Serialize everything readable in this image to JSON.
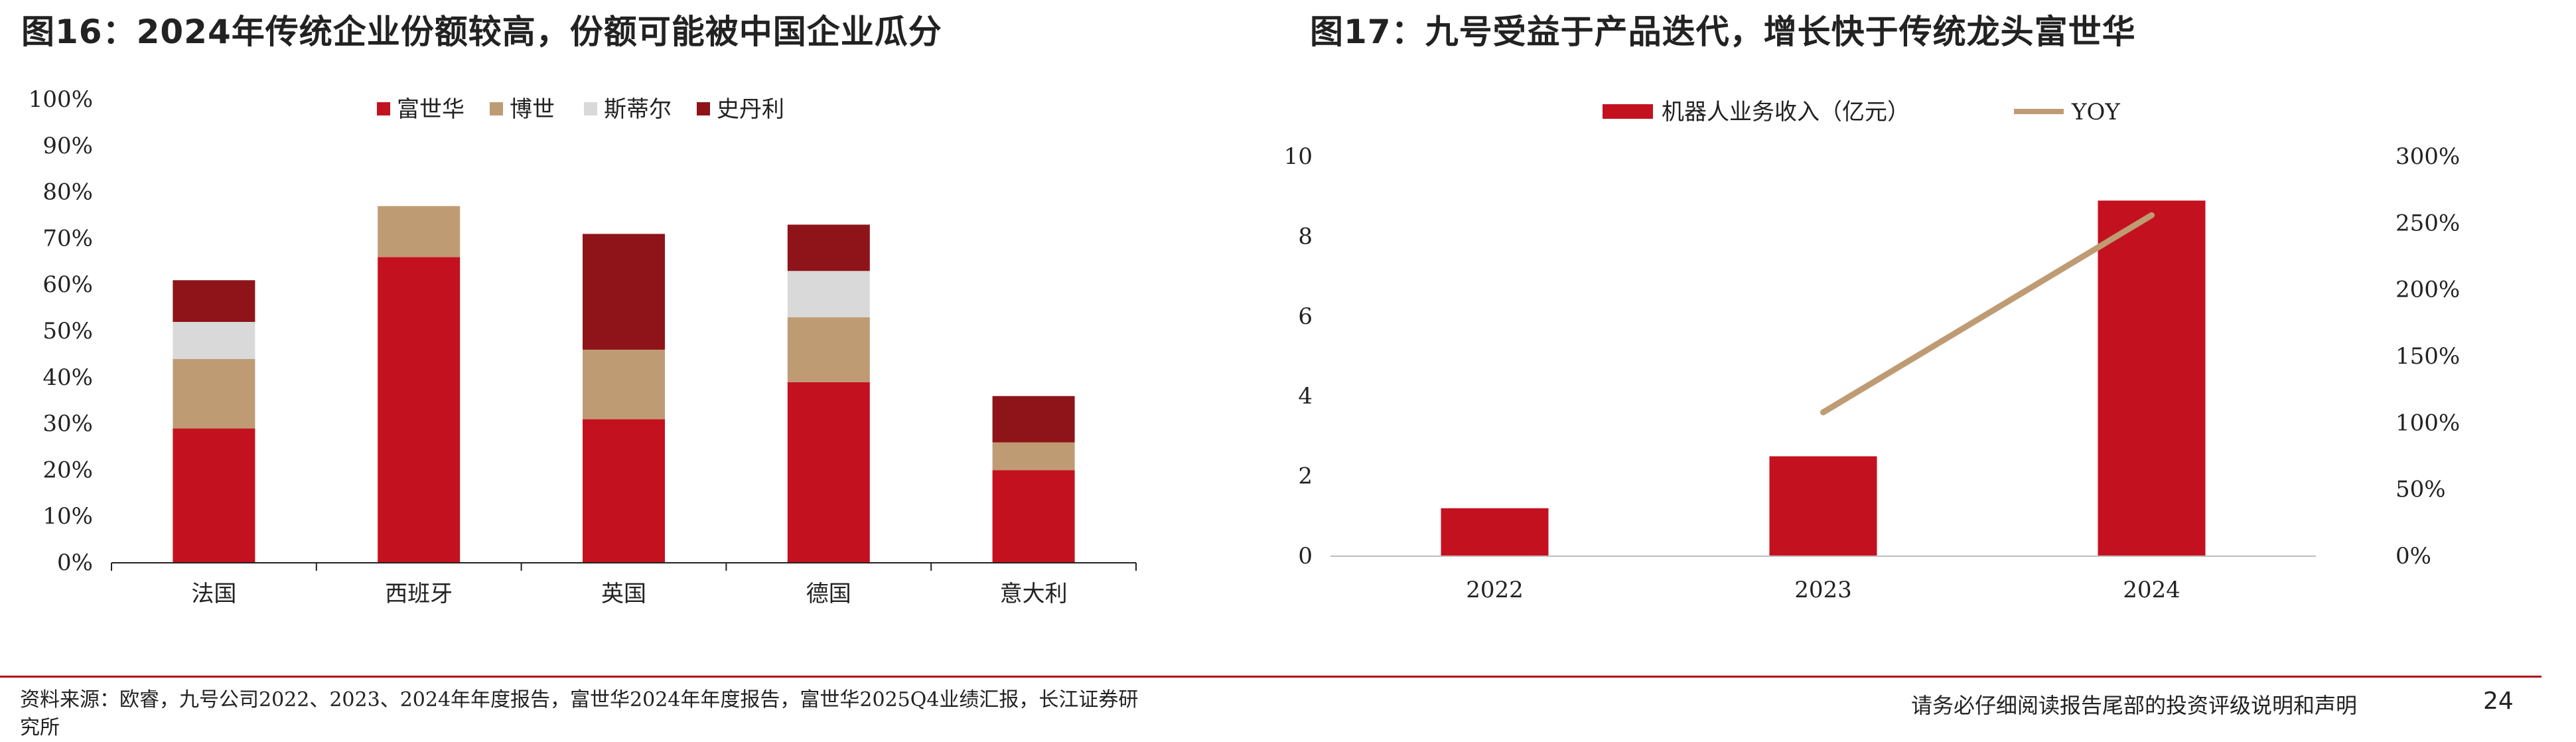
{
  "header": {
    "left_title": "图16：2024年传统企业份额较高，份额可能被中国企业瓜分",
    "right_title": "图17：九号受益于产品迭代，增长快于传统龙头富世华"
  },
  "chart_data": [
    {
      "type": "bar",
      "stacked": true,
      "categories": [
        "法国",
        "西班牙",
        "英国",
        "德国",
        "意大利"
      ],
      "series": [
        {
          "name": "富世华",
          "color": "#c4111f",
          "values": [
            29,
            66,
            31,
            39,
            20
          ]
        },
        {
          "name": "博世",
          "color": "#bf9b74",
          "values": [
            15,
            11,
            15,
            14,
            6
          ]
        },
        {
          "name": "斯蒂尔",
          "color": "#d9d9d9",
          "values": [
            8,
            0,
            0,
            10,
            0
          ]
        },
        {
          "name": "史丹利",
          "color": "#8e1419",
          "values": [
            9,
            0,
            25,
            10,
            10
          ]
        }
      ],
      "ylim": [
        0,
        100
      ],
      "yticks": [
        "0%",
        "10%",
        "20%",
        "30%",
        "40%",
        "50%",
        "60%",
        "70%",
        "80%",
        "90%",
        "100%"
      ],
      "legend": "top-center"
    },
    {
      "type": "bar",
      "categories": [
        "2022",
        "2023",
        "2024"
      ],
      "series": [
        {
          "name": "机器人业务收入（亿元）",
          "type": "bar",
          "axis": "left",
          "color": "#c4111f",
          "values": [
            1.2,
            2.5,
            8.9
          ]
        },
        {
          "name": "YOY",
          "type": "line",
          "axis": "right",
          "color": "#bf9b74",
          "values": [
            null,
            108,
            256
          ]
        }
      ],
      "ylim_left": [
        0,
        10
      ],
      "yticks_left": [
        "0",
        "2",
        "4",
        "6",
        "8",
        "10"
      ],
      "ylim_right": [
        0,
        300
      ],
      "yticks_right": [
        "0%",
        "50%",
        "100%",
        "150%",
        "200%",
        "250%",
        "300%"
      ],
      "legend": "top-center"
    }
  ],
  "footer": {
    "source": "资料来源：欧睿，九号公司2022、2023、2024年年度报告，富世华2024年年度报告，富世华2025Q4业绩汇报，长江证券研究所",
    "disclaimer": "请务必仔细阅读报告尾部的投资评级说明和声明",
    "page_number": "24"
  }
}
